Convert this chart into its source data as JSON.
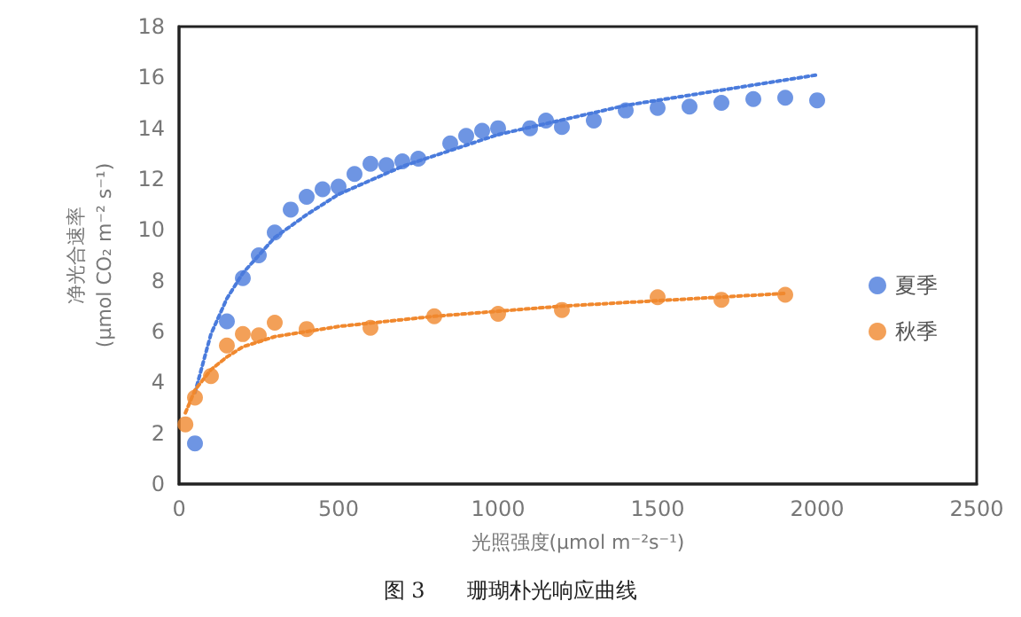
{
  "chart_data": {
    "type": "scatter",
    "title": "图 3　　珊瑚朴光响应曲线",
    "xlabel": "光照强度(μmol m⁻²s⁻¹)",
    "ylabel": "净光合速率\n(μmol CO₂ m⁻² s⁻¹)",
    "xlim": [
      0,
      2500
    ],
    "xticks": [
      0,
      500,
      1000,
      1500,
      2000,
      2500
    ],
    "ylim": [
      0,
      18
    ],
    "yticks": [
      0,
      2,
      4,
      6,
      8,
      10,
      12,
      14,
      16,
      18
    ],
    "grid": false,
    "legend": "right",
    "marker": "circle",
    "series": [
      {
        "name": "夏季",
        "color": "#4a7bdc",
        "x": [
          50,
          150,
          200,
          250,
          300,
          350,
          400,
          450,
          500,
          550,
          600,
          650,
          700,
          750,
          850,
          900,
          950,
          1000,
          1100,
          1150,
          1200,
          1300,
          1400,
          1500,
          1600,
          1700,
          1800,
          1900,
          2000
        ],
        "values": [
          1.6,
          6.4,
          8.1,
          9.0,
          9.9,
          10.8,
          11.3,
          11.6,
          11.7,
          12.2,
          12.6,
          12.55,
          12.7,
          12.8,
          13.4,
          13.7,
          13.9,
          14.0,
          14.0,
          14.3,
          14.05,
          14.3,
          14.7,
          14.8,
          14.85,
          15.0,
          15.15,
          15.2,
          15.1
        ]
      },
      {
        "name": "秋季",
        "color": "#f0882e",
        "x": [
          20,
          50,
          100,
          150,
          200,
          250,
          300,
          400,
          600,
          800,
          1000,
          1200,
          1500,
          1700,
          1900
        ],
        "values": [
          2.35,
          3.4,
          4.25,
          5.45,
          5.9,
          5.85,
          6.35,
          6.1,
          6.15,
          6.6,
          6.7,
          6.85,
          7.35,
          7.25,
          7.45
        ]
      },
      {
        "type": "line",
        "line_style": "dotted",
        "marker": "none",
        "color": "#4a7bdc",
        "x": [
          50,
          100,
          150,
          200,
          300,
          400,
          500,
          700,
          1000,
          1400,
          2000
        ],
        "values": [
          3.6,
          5.9,
          7.3,
          8.3,
          9.7,
          10.6,
          11.4,
          12.5,
          13.75,
          14.9,
          16.1
        ]
      },
      {
        "type": "line",
        "line_style": "dotted",
        "marker": "none",
        "color": "#f0882e",
        "x": [
          20,
          50,
          100,
          150,
          200,
          300,
          500,
          800,
          1200,
          1900
        ],
        "values": [
          2.8,
          3.7,
          4.5,
          5.0,
          5.4,
          5.8,
          6.2,
          6.6,
          7.0,
          7.5
        ]
      }
    ]
  }
}
